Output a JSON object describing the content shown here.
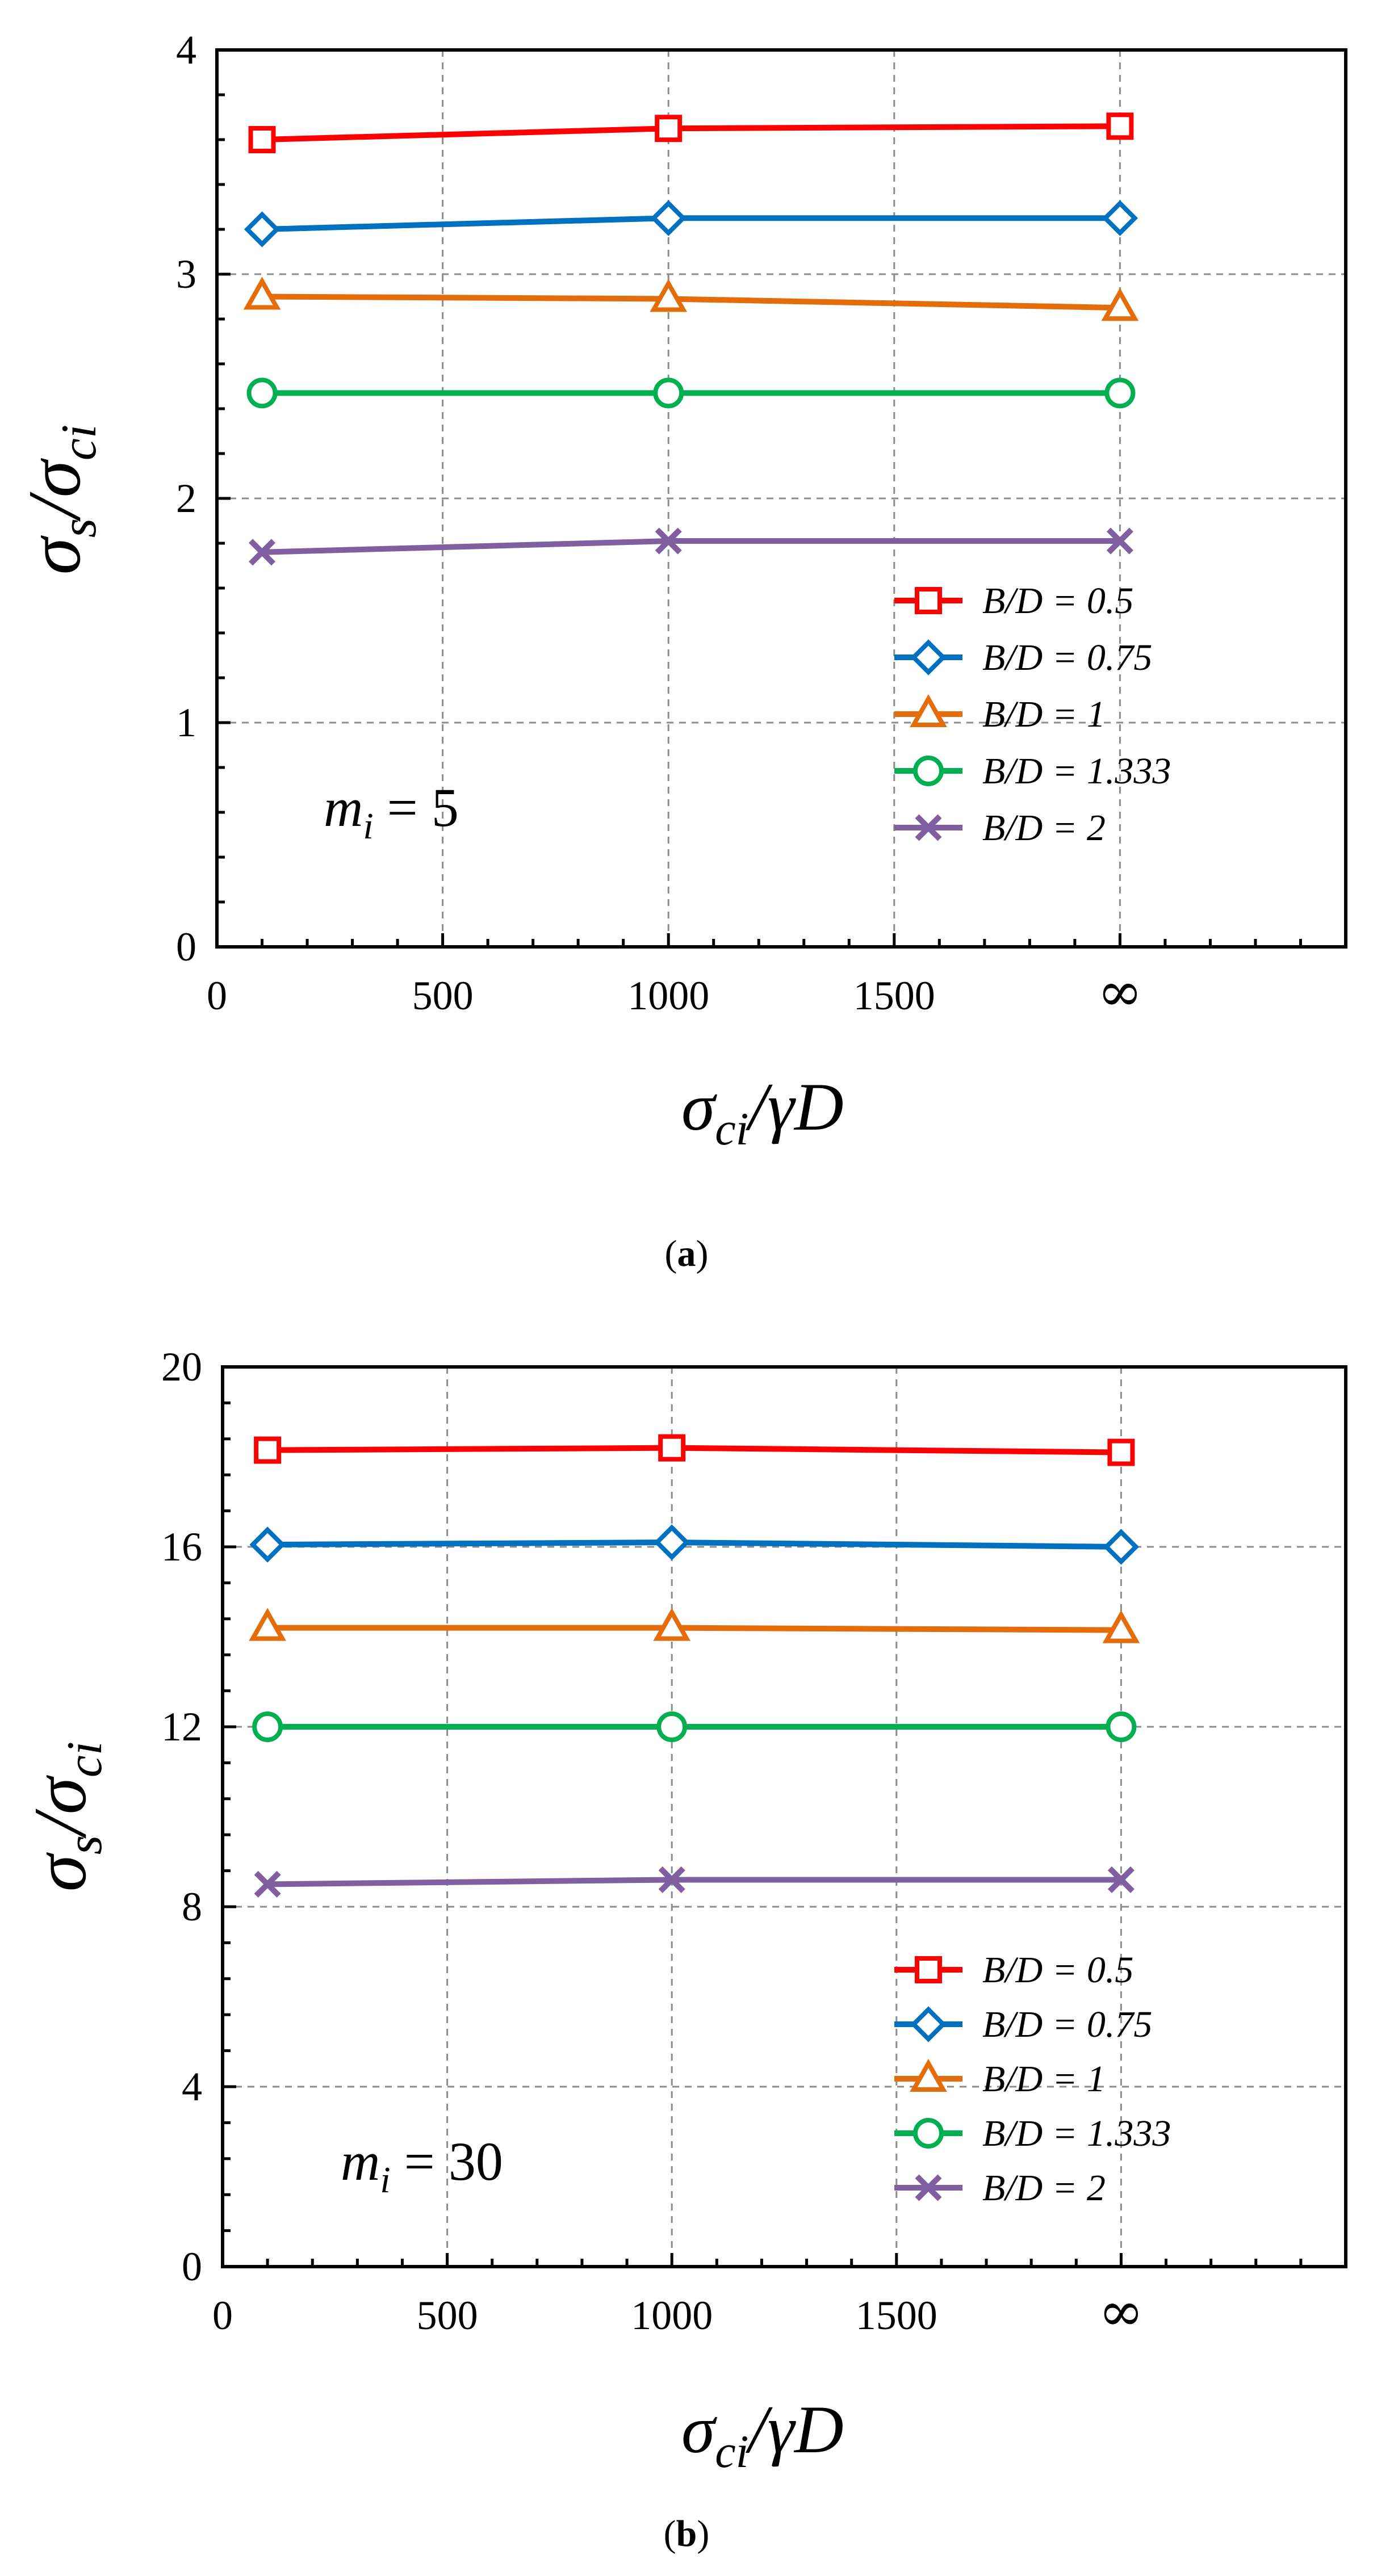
{
  "panels": [
    {
      "id": "a",
      "caption_letter": "a",
      "annotation": {
        "base": "m",
        "sub": "i",
        "rest": " = 5"
      },
      "x_axis_label": {
        "main": "σ",
        "sub": "ci",
        "rest": "/γD"
      },
      "y_axis_label": {
        "num": "σ",
        "num_sub": "s",
        "slash": "/",
        "den": "σ",
        "den_sub": "ci"
      },
      "x_tick_labels": [
        "0",
        "500",
        "1000",
        "1500",
        "∞"
      ],
      "y_tick_labels": [
        "0",
        "1",
        "2",
        "3",
        "4"
      ]
    },
    {
      "id": "b",
      "caption_letter": "b",
      "annotation": {
        "base": "m",
        "sub": "i",
        "rest": " = 30"
      },
      "x_axis_label": {
        "main": "σ",
        "sub": "ci",
        "rest": "/γD"
      },
      "y_axis_label": {
        "num": "σ",
        "num_sub": "s",
        "slash": "/",
        "den": "σ",
        "den_sub": "ci"
      },
      "x_tick_labels": [
        "0",
        "500",
        "1000",
        "1500",
        "∞"
      ],
      "y_tick_labels": [
        "0",
        "4",
        "8",
        "12",
        "16",
        "20"
      ]
    }
  ],
  "chart_data": [
    {
      "type": "line",
      "xlim": [
        0,
        2500
      ],
      "ylim": [
        0,
        4
      ],
      "xticks": [
        0,
        500,
        1000,
        1500,
        2000
      ],
      "yticks": [
        0,
        1,
        2,
        3,
        4
      ],
      "x": [
        100,
        1000,
        2000
      ],
      "x_display": [
        "100",
        "1000",
        "∞"
      ],
      "grid": true,
      "legend_position": "bottom-right",
      "series": [
        {
          "name": "B/D = 0.5",
          "color": "#ff0000",
          "marker": "square",
          "values": [
            3.6,
            3.65,
            3.66
          ]
        },
        {
          "name": "B/D = 0.75",
          "color": "#0070c0",
          "marker": "diamond",
          "values": [
            3.2,
            3.25,
            3.25
          ]
        },
        {
          "name": "B/D = 1",
          "color": "#e46c0a",
          "marker": "triangle",
          "values": [
            2.9,
            2.89,
            2.85
          ]
        },
        {
          "name": "B/D = 1.333",
          "color": "#00b050",
          "marker": "circle",
          "values": [
            2.47,
            2.47,
            2.47
          ]
        },
        {
          "name": "B/D = 2",
          "color": "#7f5fa0",
          "marker": "x",
          "values": [
            1.76,
            1.81,
            1.81
          ]
        }
      ]
    },
    {
      "type": "line",
      "xlim": [
        0,
        2500
      ],
      "ylim": [
        0,
        20
      ],
      "xticks": [
        0,
        500,
        1000,
        1500,
        2000
      ],
      "yticks": [
        0,
        4,
        8,
        12,
        16,
        20
      ],
      "x": [
        100,
        1000,
        2000
      ],
      "x_display": [
        "100",
        "1000",
        "∞"
      ],
      "grid": true,
      "legend_position": "bottom-right",
      "series": [
        {
          "name": "B/D = 0.5",
          "color": "#ff0000",
          "marker": "square",
          "values": [
            18.15,
            18.2,
            18.1
          ]
        },
        {
          "name": "B/D = 0.75",
          "color": "#0070c0",
          "marker": "diamond",
          "values": [
            16.05,
            16.1,
            16.0
          ]
        },
        {
          "name": "B/D = 1",
          "color": "#e46c0a",
          "marker": "triangle",
          "values": [
            14.2,
            14.2,
            14.15
          ]
        },
        {
          "name": "B/D = 1.333",
          "color": "#00b050",
          "marker": "circle",
          "values": [
            12.0,
            12.0,
            12.0
          ]
        },
        {
          "name": "B/D = 2",
          "color": "#7f5fa0",
          "marker": "x",
          "values": [
            8.5,
            8.6,
            8.6
          ]
        }
      ]
    }
  ]
}
